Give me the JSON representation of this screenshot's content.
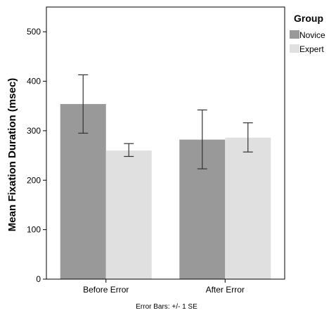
{
  "chart_data": {
    "type": "bar",
    "title": "",
    "ylabel": "Mean Fixation Duration (msec)",
    "xlabel": "",
    "ylim": [
      0,
      550
    ],
    "yticks": [
      0,
      100,
      200,
      300,
      400,
      500
    ],
    "ytick_labels": [
      "0",
      "100",
      "200",
      "300",
      "400",
      "500"
    ],
    "categories": [
      "Before Error",
      "After Error"
    ],
    "series": [
      {
        "name": "Novice",
        "color": "#999999",
        "values": [
          354,
          282
        ],
        "error_low": [
          295,
          223
        ],
        "error_high": [
          413,
          342
        ]
      },
      {
        "name": "Expert",
        "color": "#e0e0e0",
        "values": [
          260,
          286
        ],
        "error_low": [
          248,
          257
        ],
        "error_high": [
          274,
          316
        ]
      }
    ],
    "legend": {
      "title": "Group",
      "position": "right"
    },
    "grid": false,
    "note": "Error Bars: +/- 1 SE"
  }
}
